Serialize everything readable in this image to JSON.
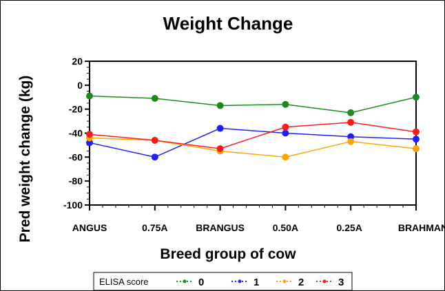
{
  "chart_data": {
    "type": "line",
    "title": "Weight Change",
    "xlabel": "Breed group of cow",
    "ylabel": "Pred weight change (kg)",
    "categories": [
      "ANGUS",
      "0.75A",
      "BRANGUS",
      "0.50A",
      "0.25A",
      "BRAHMAN"
    ],
    "ylim": [
      -100,
      20
    ],
    "yticks": [
      20,
      0,
      -20,
      -40,
      -60,
      -80,
      -100
    ],
    "grid": false,
    "legend": {
      "title": "ELISA score",
      "position": "bottom"
    },
    "series": [
      {
        "name": "0",
        "color": "#1a8c1a",
        "values": [
          -9,
          -11,
          -17,
          -16,
          -23,
          -10
        ]
      },
      {
        "name": "1",
        "color": "#1f1fff",
        "values": [
          -48,
          -60,
          -36,
          -40,
          -43,
          -45
        ]
      },
      {
        "name": "2",
        "color": "#ffa500",
        "values": [
          -44,
          -46,
          -55,
          -60,
          -47,
          -53
        ]
      },
      {
        "name": "3",
        "color": "#ff1a1a",
        "values": [
          -41,
          -46,
          -53,
          -35,
          -31,
          -39
        ]
      }
    ]
  }
}
